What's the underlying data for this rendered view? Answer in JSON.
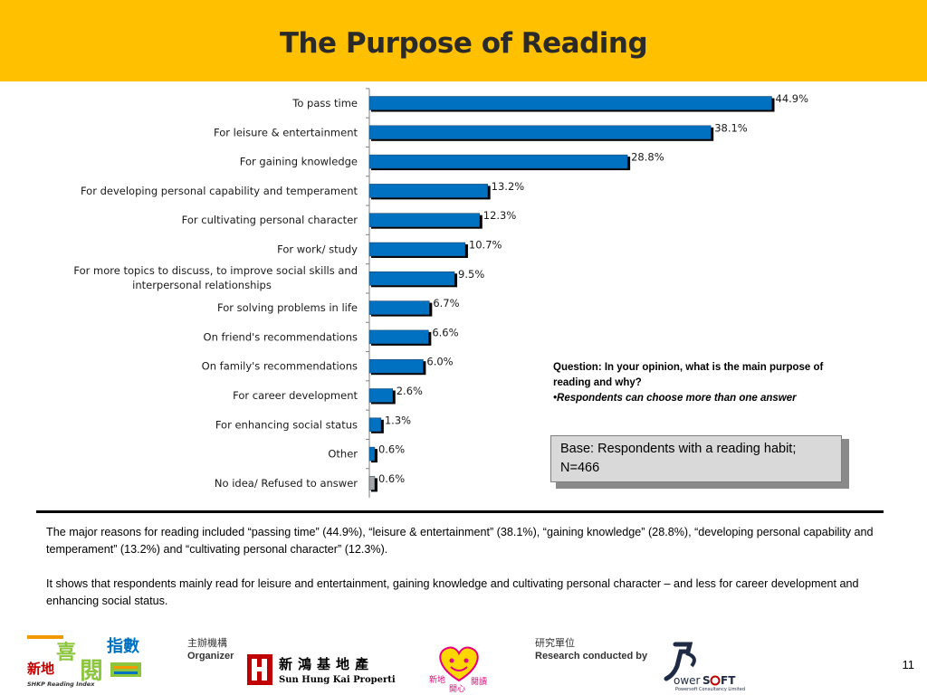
{
  "title": "The Purpose of Reading",
  "chart_data": {
    "type": "bar",
    "orientation": "horizontal",
    "categories": [
      "To pass time",
      "For leisure & entertainment",
      "For gaining knowledge",
      "For developing personal capability and temperament",
      "For cultivating personal character",
      "For work/ study",
      "For more topics to discuss, to improve social skills and interpersonal relationships",
      "For solving problems in life",
      "On friend's recommendations",
      "On family's recommendations",
      "For career development",
      "For enhancing social status",
      "Other",
      "No idea/ Refused to answer"
    ],
    "category_lines": [
      [
        "To pass time"
      ],
      [
        "For leisure & entertainment"
      ],
      [
        "For gaining knowledge"
      ],
      [
        "For developing personal capability and temperament"
      ],
      [
        "For cultivating personal character"
      ],
      [
        "For work/ study"
      ],
      [
        "For more topics to discuss, to improve social skills and",
        "interpersonal relationships"
      ],
      [
        "For solving problems in life"
      ],
      [
        "On friend's recommendations"
      ],
      [
        "On family's recommendations"
      ],
      [
        "For career development"
      ],
      [
        "For enhancing social status"
      ],
      [
        "Other"
      ],
      [
        "No idea/ Refused to answer"
      ]
    ],
    "values": [
      44.9,
      38.1,
      28.8,
      13.2,
      12.3,
      10.7,
      9.5,
      6.7,
      6.6,
      6.0,
      2.6,
      1.3,
      0.6,
      0.6
    ],
    "value_labels": [
      "44.9%",
      "38.1%",
      "28.8%",
      "13.2%",
      "12.3%",
      "10.7%",
      "9.5%",
      "6.7%",
      "6.6%",
      "6.0%",
      "2.6%",
      "1.3%",
      "0.6%",
      "0.6%"
    ],
    "bar_colors": [
      "#0070c0",
      "#0070c0",
      "#0070c0",
      "#0070c0",
      "#0070c0",
      "#0070c0",
      "#0070c0",
      "#0070c0",
      "#0070c0",
      "#0070c0",
      "#0070c0",
      "#0070c0",
      "#0070c0",
      "#a6a6a6"
    ],
    "xlim": [
      0,
      50
    ],
    "grid": false,
    "legend": "none"
  },
  "question": {
    "text": "Question: In your opinion, what is the main purpose of reading and why?",
    "note": "•Respondents can choose more than one answer"
  },
  "base_note": "Base: Respondents with a reading habit; N=466",
  "summary": {
    "paragraph1": "The major reasons for reading included “passing time” (44.9%), “leisure & entertainment” (38.1%), “gaining knowledge” (28.8%), “developing personal capability and temperament” (13.2%) and “cultivating personal character” (12.3%).",
    "paragraph2": "It shows that respondents mainly read for leisure and entertainment, gaining knowledge and cultivating personal character – and less for career development and enhancing social status."
  },
  "footer": {
    "organizer_zh": "主辦機構",
    "organizer_en": "Organizer",
    "research_zh": "研究單位",
    "research_en": "Research conducted by",
    "page_number": "11",
    "logos": {
      "shkp_reading_index": "新地 喜閱指數 SHKP Reading Index",
      "sun_hung_kai": "新 鴻 基 地 產 Sun Hung Kai Properties",
      "reading_heart": "新地開心閱讀",
      "powersoft": "PowerSOFT Powersoft Consultancy Limited"
    }
  },
  "colors": {
    "header_bg": "#ffc000",
    "bar": "#0070c0",
    "bar_other": "#a6a6a6",
    "bar_shadow": "#000000"
  }
}
